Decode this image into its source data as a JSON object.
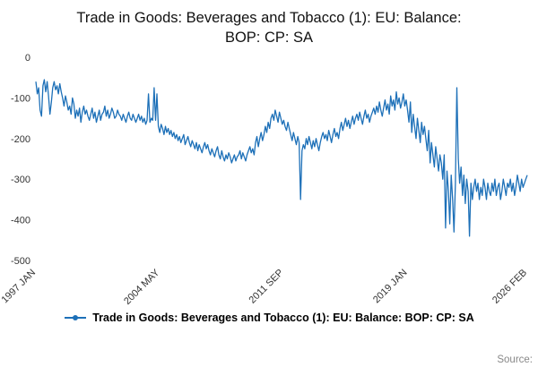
{
  "title": "Trade in Goods: Beverages and Tobacco (1): EU: Balance: BOP: CP: SA",
  "legend": {
    "label": "Trade in Goods: Beverages and Tobacco (1): EU: Balance: BOP: CP: SA"
  },
  "source_label": "Source:",
  "chart_data": {
    "type": "line",
    "title": "Trade in Goods: Beverages and Tobacco (1): EU: Balance: BOP: CP: SA",
    "color": "#1d70b8",
    "background": "#ffffff",
    "grid": false,
    "legend_position": "bottom",
    "ylabel": "",
    "xlabel": "",
    "ylim": [
      -500,
      0
    ],
    "yticks": [
      0,
      -100,
      -200,
      -300,
      -400,
      -500
    ],
    "frequency": "monthly",
    "x_start": "1997 JAN",
    "x_end": "2026 FEB",
    "x_ticks": [
      {
        "label": "1997 JAN",
        "index": 0
      },
      {
        "label": "2004 MAY",
        "index": 88
      },
      {
        "label": "2011 SEP",
        "index": 176
      },
      {
        "label": "2019 JAN",
        "index": 264
      },
      {
        "label": "2026 FEB",
        "index": 349
      }
    ],
    "values": [
      -60,
      -90,
      -75,
      -130,
      -145,
      -70,
      -55,
      -85,
      -60,
      -95,
      -140,
      -110,
      -75,
      -60,
      -80,
      -70,
      -90,
      -65,
      -85,
      -100,
      -120,
      -95,
      -110,
      -130,
      -120,
      -140,
      -100,
      -115,
      -150,
      -130,
      -145,
      -125,
      -160,
      -135,
      -120,
      -140,
      -130,
      -145,
      -155,
      -140,
      -125,
      -150,
      -135,
      -160,
      -145,
      -130,
      -155,
      -140,
      -135,
      -120,
      -145,
      -130,
      -150,
      -140,
      -125,
      -135,
      -150,
      -145,
      -130,
      -140,
      -145,
      -155,
      -140,
      -150,
      -160,
      -145,
      -135,
      -150,
      -155,
      -140,
      -150,
      -160,
      -150,
      -140,
      -155,
      -145,
      -160,
      -150,
      -165,
      -155,
      -90,
      -160,
      -150,
      -155,
      -75,
      -155,
      -90,
      -170,
      -185,
      -165,
      -175,
      -190,
      -170,
      -185,
      -175,
      -190,
      -180,
      -195,
      -185,
      -200,
      -190,
      -205,
      -195,
      -210,
      -200,
      -190,
      -215,
      -205,
      -195,
      -210,
      -220,
      -205,
      -215,
      -225,
      -210,
      -230,
      -215,
      -225,
      -235,
      -220,
      -210,
      -225,
      -215,
      -230,
      -240,
      -225,
      -235,
      -245,
      -230,
      -220,
      -240,
      -250,
      -230,
      -245,
      -255,
      -240,
      -250,
      -235,
      -245,
      -260,
      -250,
      -240,
      -255,
      -245,
      -240,
      -230,
      -250,
      -235,
      -245,
      -255,
      -240,
      -230,
      -220,
      -235,
      -225,
      -240,
      -210,
      -195,
      -220,
      -200,
      -185,
      -205,
      -190,
      -170,
      -185,
      -160,
      -175,
      -150,
      -140,
      -155,
      -130,
      -145,
      -160,
      -135,
      -150,
      -165,
      -155,
      -170,
      -180,
      -160,
      -175,
      -190,
      -205,
      -185,
      -200,
      -215,
      -195,
      -210,
      -350,
      -230,
      -215,
      -225,
      -200,
      -215,
      -195,
      -210,
      -225,
      -205,
      -220,
      -200,
      -215,
      -230,
      -210,
      -195,
      -185,
      -200,
      -190,
      -205,
      -180,
      -195,
      -210,
      -190,
      -175,
      -195,
      -185,
      -200,
      -175,
      -160,
      -180,
      -165,
      -150,
      -170,
      -155,
      -175,
      -160,
      -145,
      -165,
      -150,
      -140,
      -155,
      -135,
      -150,
      -165,
      -145,
      -130,
      -150,
      -140,
      -160,
      -145,
      -135,
      -125,
      -140,
      -120,
      -135,
      -110,
      -130,
      -145,
      -125,
      -105,
      -130,
      -115,
      -140,
      -95,
      -120,
      -105,
      -130,
      -85,
      -115,
      -100,
      -125,
      -110,
      -90,
      -120,
      -105,
      -130,
      -160,
      -110,
      -185,
      -140,
      -170,
      -200,
      -150,
      -180,
      -210,
      -160,
      -190,
      -170,
      -200,
      -230,
      -180,
      -260,
      -210,
      -240,
      -270,
      -220,
      -250,
      -280,
      -240,
      -260,
      -300,
      -240,
      -420,
      -280,
      -330,
      -410,
      -290,
      -350,
      -430,
      -310,
      -75,
      -250,
      -310,
      -270,
      -340,
      -290,
      -360,
      -300,
      -330,
      -440,
      -310,
      -350,
      -320,
      -300,
      -330,
      -310,
      -350,
      -320,
      -340,
      -300,
      -320,
      -350,
      -310,
      -330,
      -340,
      -310,
      -330,
      -300,
      -340,
      -320,
      -310,
      -350,
      -330,
      -300,
      -320,
      -340,
      -310,
      -320,
      -300,
      -330,
      -310,
      -340,
      -320,
      -290,
      -310,
      -330,
      -300,
      -320,
      -310,
      -300,
      -290
    ]
  }
}
